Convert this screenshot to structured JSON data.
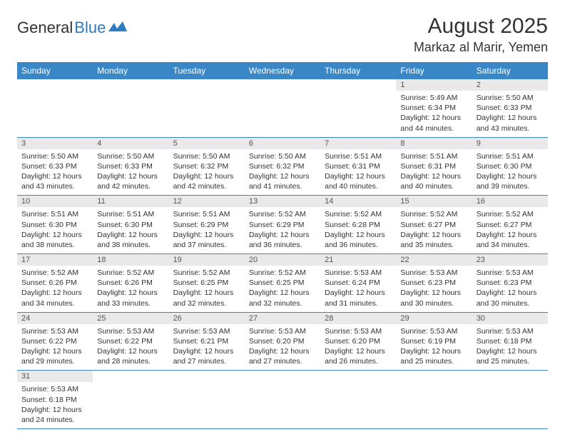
{
  "logo": {
    "text1": "General",
    "text2": "Blue"
  },
  "header": {
    "month": "August 2025",
    "location": "Markaz al Marir, Yemen"
  },
  "colors": {
    "header_bg": "#3a87c7",
    "header_fg": "#ffffff",
    "daynum_bg": "#e9e9e9",
    "row_border": "#3a87c7",
    "logo_blue": "#2d7bc0"
  },
  "weekdays": [
    "Sunday",
    "Monday",
    "Tuesday",
    "Wednesday",
    "Thursday",
    "Friday",
    "Saturday"
  ],
  "weeks": [
    [
      {
        "n": "",
        "sr": "",
        "ss": "",
        "dl": ""
      },
      {
        "n": "",
        "sr": "",
        "ss": "",
        "dl": ""
      },
      {
        "n": "",
        "sr": "",
        "ss": "",
        "dl": ""
      },
      {
        "n": "",
        "sr": "",
        "ss": "",
        "dl": ""
      },
      {
        "n": "",
        "sr": "",
        "ss": "",
        "dl": ""
      },
      {
        "n": "1",
        "sr": "Sunrise: 5:49 AM",
        "ss": "Sunset: 6:34 PM",
        "dl": "Daylight: 12 hours and 44 minutes."
      },
      {
        "n": "2",
        "sr": "Sunrise: 5:50 AM",
        "ss": "Sunset: 6:33 PM",
        "dl": "Daylight: 12 hours and 43 minutes."
      }
    ],
    [
      {
        "n": "3",
        "sr": "Sunrise: 5:50 AM",
        "ss": "Sunset: 6:33 PM",
        "dl": "Daylight: 12 hours and 43 minutes."
      },
      {
        "n": "4",
        "sr": "Sunrise: 5:50 AM",
        "ss": "Sunset: 6:33 PM",
        "dl": "Daylight: 12 hours and 42 minutes."
      },
      {
        "n": "5",
        "sr": "Sunrise: 5:50 AM",
        "ss": "Sunset: 6:32 PM",
        "dl": "Daylight: 12 hours and 42 minutes."
      },
      {
        "n": "6",
        "sr": "Sunrise: 5:50 AM",
        "ss": "Sunset: 6:32 PM",
        "dl": "Daylight: 12 hours and 41 minutes."
      },
      {
        "n": "7",
        "sr": "Sunrise: 5:51 AM",
        "ss": "Sunset: 6:31 PM",
        "dl": "Daylight: 12 hours and 40 minutes."
      },
      {
        "n": "8",
        "sr": "Sunrise: 5:51 AM",
        "ss": "Sunset: 6:31 PM",
        "dl": "Daylight: 12 hours and 40 minutes."
      },
      {
        "n": "9",
        "sr": "Sunrise: 5:51 AM",
        "ss": "Sunset: 6:30 PM",
        "dl": "Daylight: 12 hours and 39 minutes."
      }
    ],
    [
      {
        "n": "10",
        "sr": "Sunrise: 5:51 AM",
        "ss": "Sunset: 6:30 PM",
        "dl": "Daylight: 12 hours and 38 minutes."
      },
      {
        "n": "11",
        "sr": "Sunrise: 5:51 AM",
        "ss": "Sunset: 6:30 PM",
        "dl": "Daylight: 12 hours and 38 minutes."
      },
      {
        "n": "12",
        "sr": "Sunrise: 5:51 AM",
        "ss": "Sunset: 6:29 PM",
        "dl": "Daylight: 12 hours and 37 minutes."
      },
      {
        "n": "13",
        "sr": "Sunrise: 5:52 AM",
        "ss": "Sunset: 6:29 PM",
        "dl": "Daylight: 12 hours and 36 minutes."
      },
      {
        "n": "14",
        "sr": "Sunrise: 5:52 AM",
        "ss": "Sunset: 6:28 PM",
        "dl": "Daylight: 12 hours and 36 minutes."
      },
      {
        "n": "15",
        "sr": "Sunrise: 5:52 AM",
        "ss": "Sunset: 6:27 PM",
        "dl": "Daylight: 12 hours and 35 minutes."
      },
      {
        "n": "16",
        "sr": "Sunrise: 5:52 AM",
        "ss": "Sunset: 6:27 PM",
        "dl": "Daylight: 12 hours and 34 minutes."
      }
    ],
    [
      {
        "n": "17",
        "sr": "Sunrise: 5:52 AM",
        "ss": "Sunset: 6:26 PM",
        "dl": "Daylight: 12 hours and 34 minutes."
      },
      {
        "n": "18",
        "sr": "Sunrise: 5:52 AM",
        "ss": "Sunset: 6:26 PM",
        "dl": "Daylight: 12 hours and 33 minutes."
      },
      {
        "n": "19",
        "sr": "Sunrise: 5:52 AM",
        "ss": "Sunset: 6:25 PM",
        "dl": "Daylight: 12 hours and 32 minutes."
      },
      {
        "n": "20",
        "sr": "Sunrise: 5:52 AM",
        "ss": "Sunset: 6:25 PM",
        "dl": "Daylight: 12 hours and 32 minutes."
      },
      {
        "n": "21",
        "sr": "Sunrise: 5:53 AM",
        "ss": "Sunset: 6:24 PM",
        "dl": "Daylight: 12 hours and 31 minutes."
      },
      {
        "n": "22",
        "sr": "Sunrise: 5:53 AM",
        "ss": "Sunset: 6:23 PM",
        "dl": "Daylight: 12 hours and 30 minutes."
      },
      {
        "n": "23",
        "sr": "Sunrise: 5:53 AM",
        "ss": "Sunset: 6:23 PM",
        "dl": "Daylight: 12 hours and 30 minutes."
      }
    ],
    [
      {
        "n": "24",
        "sr": "Sunrise: 5:53 AM",
        "ss": "Sunset: 6:22 PM",
        "dl": "Daylight: 12 hours and 29 minutes."
      },
      {
        "n": "25",
        "sr": "Sunrise: 5:53 AM",
        "ss": "Sunset: 6:22 PM",
        "dl": "Daylight: 12 hours and 28 minutes."
      },
      {
        "n": "26",
        "sr": "Sunrise: 5:53 AM",
        "ss": "Sunset: 6:21 PM",
        "dl": "Daylight: 12 hours and 27 minutes."
      },
      {
        "n": "27",
        "sr": "Sunrise: 5:53 AM",
        "ss": "Sunset: 6:20 PM",
        "dl": "Daylight: 12 hours and 27 minutes."
      },
      {
        "n": "28",
        "sr": "Sunrise: 5:53 AM",
        "ss": "Sunset: 6:20 PM",
        "dl": "Daylight: 12 hours and 26 minutes."
      },
      {
        "n": "29",
        "sr": "Sunrise: 5:53 AM",
        "ss": "Sunset: 6:19 PM",
        "dl": "Daylight: 12 hours and 25 minutes."
      },
      {
        "n": "30",
        "sr": "Sunrise: 5:53 AM",
        "ss": "Sunset: 6:18 PM",
        "dl": "Daylight: 12 hours and 25 minutes."
      }
    ],
    [
      {
        "n": "31",
        "sr": "Sunrise: 5:53 AM",
        "ss": "Sunset: 6:18 PM",
        "dl": "Daylight: 12 hours and 24 minutes."
      },
      {
        "n": "",
        "sr": "",
        "ss": "",
        "dl": ""
      },
      {
        "n": "",
        "sr": "",
        "ss": "",
        "dl": ""
      },
      {
        "n": "",
        "sr": "",
        "ss": "",
        "dl": ""
      },
      {
        "n": "",
        "sr": "",
        "ss": "",
        "dl": ""
      },
      {
        "n": "",
        "sr": "",
        "ss": "",
        "dl": ""
      },
      {
        "n": "",
        "sr": "",
        "ss": "",
        "dl": ""
      }
    ]
  ]
}
